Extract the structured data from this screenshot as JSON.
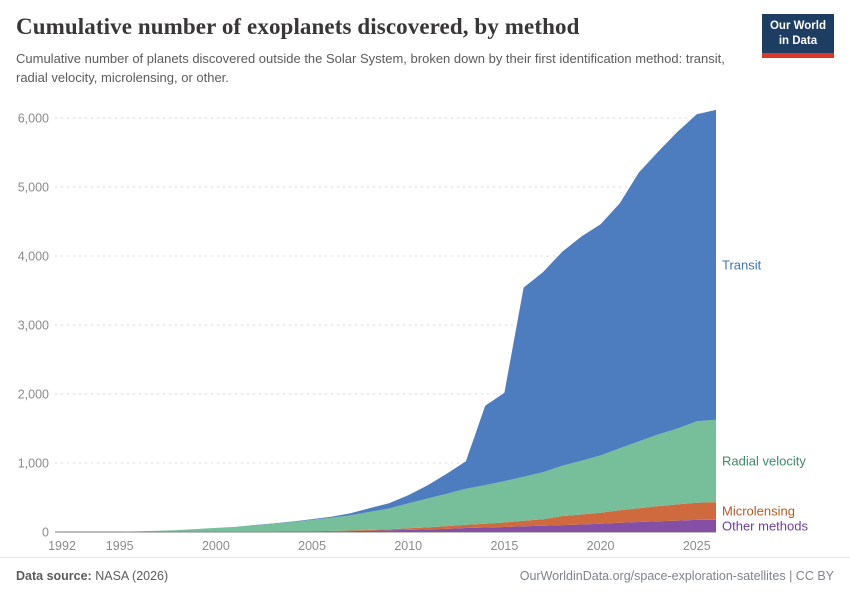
{
  "header": {
    "title": "Cumulative number of exoplanets discovered, by method",
    "subtitle": "Cumulative number of planets discovered outside the Solar System, broken down by their first identification method: transit, radial velocity, microlensing, or other.",
    "logo_line1": "Our World",
    "logo_line2": "in Data",
    "logo_bg_color": "#1d3d63",
    "logo_accent_color": "#dd362c"
  },
  "footer": {
    "source_label": "Data source:",
    "source_value": "NASA (2026)",
    "attribution": "OurWorldinData.org/space-exploration-satellites | CC BY"
  },
  "chart_data": {
    "type": "area",
    "stacked": true,
    "title": "Cumulative number of exoplanets discovered, by method",
    "xlabel": "",
    "ylabel": "",
    "grid": "dashed-horizontal",
    "legend_position": "right-inline-labels",
    "x_range": [
      1992,
      2026
    ],
    "y_range": [
      0,
      6000
    ],
    "x_ticks": [
      1992,
      1995,
      2000,
      2005,
      2010,
      2015,
      2020,
      2025
    ],
    "y_ticks": [
      0,
      1000,
      2000,
      3000,
      4000,
      5000,
      6000
    ],
    "x": [
      1992,
      1993,
      1994,
      1995,
      1996,
      1997,
      1998,
      1999,
      2000,
      2001,
      2002,
      2003,
      2004,
      2005,
      2006,
      2007,
      2008,
      2009,
      2010,
      2011,
      2012,
      2013,
      2014,
      2015,
      2016,
      2017,
      2018,
      2019,
      2020,
      2021,
      2022,
      2023,
      2024,
      2025,
      2026
    ],
    "series": [
      {
        "name": "Other methods",
        "color": "#854fa5",
        "label_color": "#6d3f9c",
        "values": [
          2,
          2,
          3,
          3,
          3,
          3,
          3,
          3,
          4,
          4,
          4,
          5,
          7,
          8,
          9,
          13,
          18,
          25,
          31,
          38,
          45,
          58,
          65,
          72,
          82,
          90,
          100,
          108,
          120,
          135,
          145,
          155,
          165,
          175,
          178
        ]
      },
      {
        "name": "Microlensing",
        "color": "#ce6a3e",
        "label_color": "#b45c26",
        "values": [
          0,
          0,
          0,
          0,
          0,
          0,
          0,
          0,
          0,
          0,
          0,
          0,
          3,
          4,
          7,
          9,
          13,
          16,
          23,
          28,
          40,
          48,
          55,
          65,
          80,
          95,
          130,
          145,
          160,
          180,
          200,
          220,
          235,
          250,
          255
        ]
      },
      {
        "name": "Radial velocity",
        "color": "#77bf9b",
        "label_color": "#3d8a67",
        "values": [
          0,
          0,
          0,
          1,
          7,
          15,
          25,
          40,
          55,
          70,
          95,
          115,
          135,
          165,
          190,
          220,
          260,
          300,
          360,
          420,
          470,
          520,
          560,
          600,
          640,
          680,
          730,
          780,
          830,
          900,
          970,
          1040,
          1100,
          1180,
          1195
        ]
      },
      {
        "name": "Transit",
        "color": "#4d7cbf",
        "label_color": "#3c76bb",
        "values": [
          0,
          0,
          0,
          0,
          0,
          0,
          0,
          0,
          0,
          0,
          2,
          4,
          7,
          10,
          16,
          30,
          55,
          75,
          120,
          190,
          290,
          400,
          1150,
          1280,
          2740,
          2900,
          3100,
          3250,
          3350,
          3550,
          3900,
          4100,
          4300,
          4450,
          4490
        ]
      }
    ]
  }
}
